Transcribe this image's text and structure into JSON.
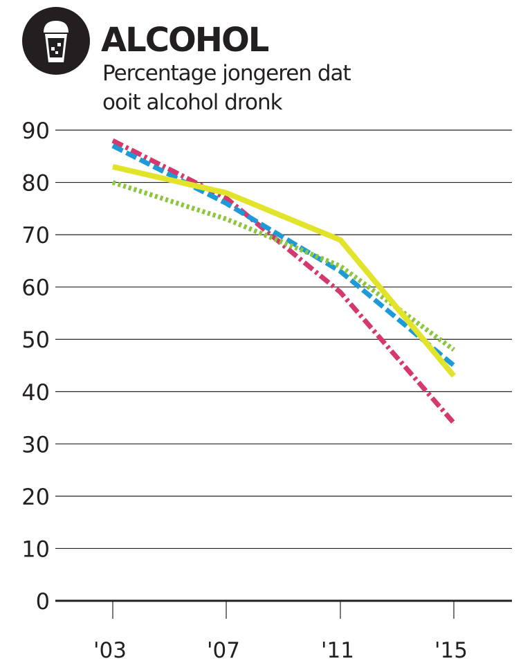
{
  "header": {
    "title": "ALCOHOL",
    "subtitle": "Percentage jongeren dat ooit alcohol dronk",
    "icon": "beer-glass-icon"
  },
  "chart_data": {
    "type": "line",
    "title": "ALCOHOL",
    "subtitle": "Percentage jongeren dat ooit alcohol dronk",
    "xlabel": "",
    "ylabel": "",
    "categories": [
      "'03",
      "'07",
      "'11",
      "'15"
    ],
    "yticks": [
      0,
      10,
      20,
      30,
      40,
      50,
      60,
      70,
      80,
      90
    ],
    "ylim": [
      0,
      90
    ],
    "grid": true,
    "legend": "none",
    "series": [
      {
        "values": [
          88,
          77,
          59,
          34
        ],
        "color": "#d4386f",
        "style": "dashdot"
      },
      {
        "values": [
          87,
          76,
          63,
          45
        ],
        "color": "#1e9ad6",
        "style": "dashed"
      },
      {
        "values": [
          80,
          73,
          64,
          48
        ],
        "color": "#8cc63f",
        "style": "dotted"
      },
      {
        "values": [
          83,
          78,
          69,
          43
        ],
        "color": "#e2e32b",
        "style": "solid"
      }
    ]
  }
}
